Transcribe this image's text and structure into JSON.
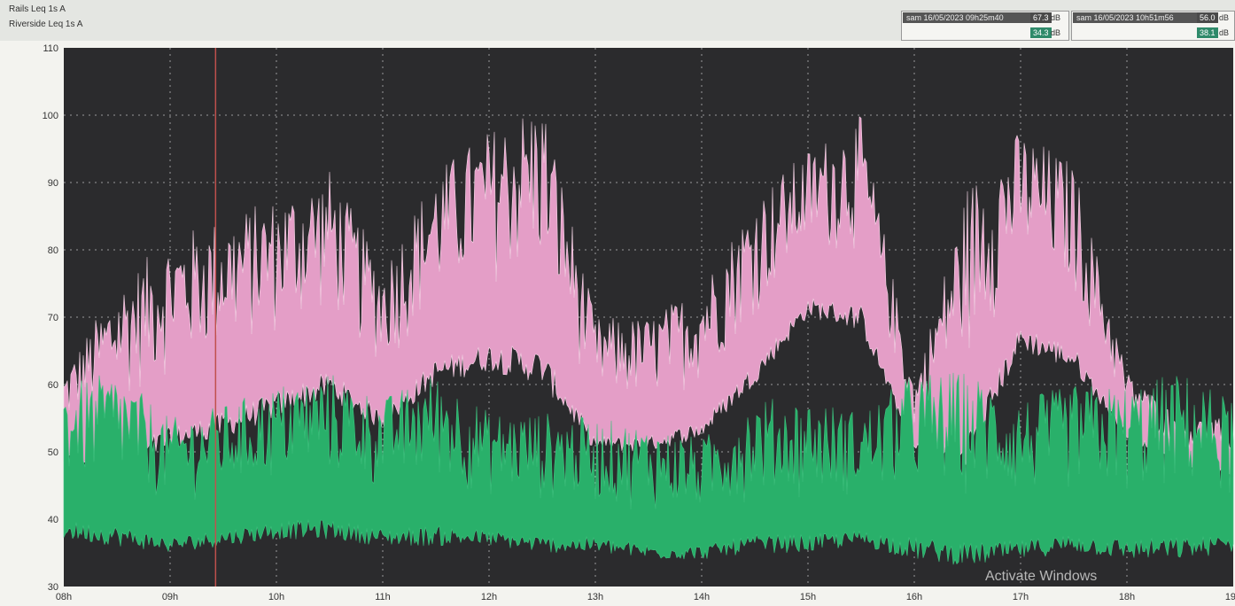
{
  "header": {
    "legend_rows": [
      "Rails  Leq 1s  A",
      "Riverside  Leq 1s  A"
    ],
    "cursor1": {
      "label": "sam 16/05/2023 09h25m40",
      "value_a": "67.3",
      "value_b": "34.3",
      "unit": "dB"
    },
    "cursor2": {
      "label": "sam 16/05/2023 10h51m56",
      "value_a": "56.0",
      "value_b": "38.1",
      "unit": "dB"
    }
  },
  "watermark": "Activate Windows",
  "colors": {
    "background": "#2b2b2d",
    "grid": "#9a9a9a",
    "rails": "#e49ec7",
    "riverside": "#29b06a",
    "cursor_line": "#c0504d"
  },
  "chart_data": {
    "type": "area",
    "title": "",
    "xlabel": "",
    "ylabel": "",
    "ylim": [
      30,
      110
    ],
    "yticks": [
      30,
      40,
      50,
      60,
      70,
      80,
      90,
      100,
      110
    ],
    "xlim": [
      "08h",
      "19h"
    ],
    "xticks": [
      "08h",
      "09h",
      "10h",
      "11h",
      "12h",
      "13h",
      "14h",
      "15h",
      "16h",
      "17h",
      "18h",
      "19h"
    ],
    "grid": true,
    "cursor_time": "09h25m40",
    "x": [
      "08:00",
      "08:30",
      "09:00",
      "09:30",
      "10:00",
      "10:30",
      "11:00",
      "11:30",
      "12:00",
      "12:30",
      "13:00",
      "13:30",
      "14:00",
      "14:30",
      "15:00",
      "15:30",
      "16:00",
      "16:30",
      "17:00",
      "17:30",
      "18:00",
      "18:30",
      "19:00"
    ],
    "series": [
      {
        "name": "Rails",
        "color": "#e49ec7",
        "min": [
          48,
          47,
          50,
          52,
          55,
          58,
          53,
          60,
          62,
          60,
          50,
          50,
          52,
          60,
          70,
          68,
          50,
          48,
          65,
          62,
          52,
          48,
          46
        ],
        "max": [
          62,
          75,
          82,
          85,
          88,
          92,
          78,
          92,
          98,
          103,
          70,
          70,
          75,
          88,
          95,
          100,
          60,
          90,
          98,
          93,
          62,
          55,
          55
        ]
      },
      {
        "name": "Riverside",
        "color": "#29b06a",
        "min": [
          37,
          36,
          35,
          36,
          37,
          37,
          36,
          36,
          36,
          35,
          35,
          34,
          34,
          35,
          35,
          36,
          34,
          33,
          34,
          35,
          34,
          34,
          35
        ],
        "max": [
          60,
          62,
          55,
          57,
          60,
          62,
          58,
          62,
          56,
          56,
          55,
          54,
          52,
          58,
          58,
          56,
          62,
          62,
          58,
          60,
          60,
          62,
          58
        ]
      }
    ]
  }
}
